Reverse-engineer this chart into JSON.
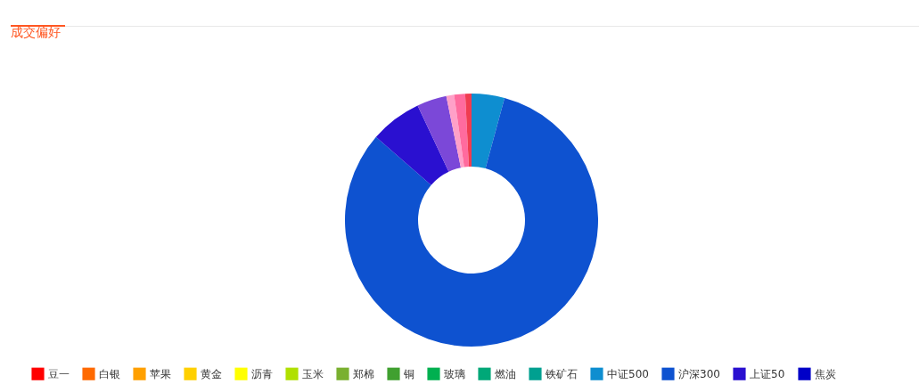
{
  "chart_data": {
    "type": "donut",
    "title": "成交偏好",
    "categories": [
      "豆一",
      "白银",
      "苹果",
      "黄金",
      "沥青",
      "玉米",
      "郑棉",
      "铜",
      "玻璃",
      "燃油",
      "铁矿石",
      "中证500",
      "沪深300",
      "上证50",
      "焦炭",
      null,
      null,
      null,
      null
    ],
    "values": [
      0,
      0,
      0,
      0,
      0,
      0,
      0,
      0,
      0,
      0,
      0,
      4.2,
      82.1,
      6.6,
      0,
      3.8,
      1.0,
      1.4,
      0.8
    ],
    "colors": [
      "#ff0000",
      "#ff6a00",
      "#ffa000",
      "#ffd000",
      "#ffff00",
      "#b0e000",
      "#7ab030",
      "#40a030",
      "#00b050",
      "#00a878",
      "#00a090",
      "#0e8ed0",
      "#0e52d0",
      "#2a10d0",
      "#0000c8",
      "#7b48d8",
      "#ffa0c8",
      "#ff6b9e",
      "#f03c50"
    ],
    "legend": "bottom"
  }
}
